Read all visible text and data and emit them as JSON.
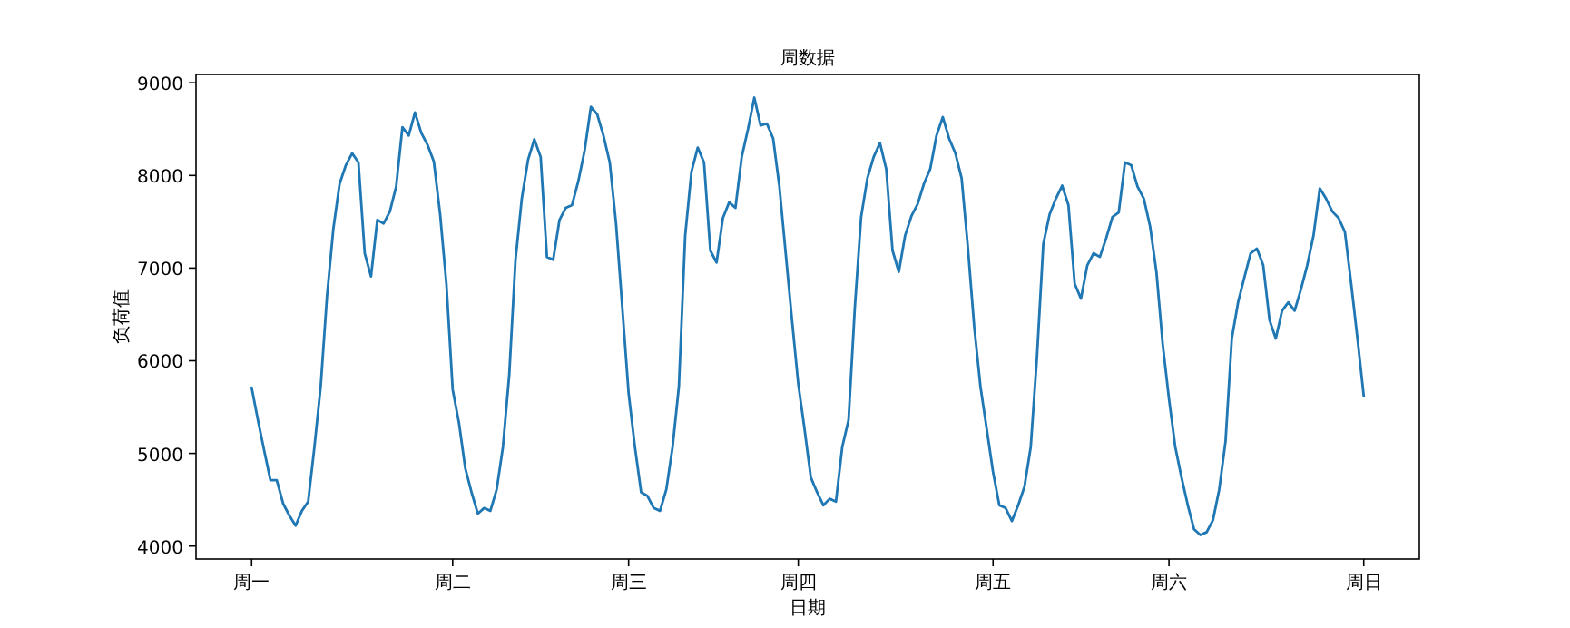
{
  "chart_data": {
    "type": "line",
    "title": "周数据",
    "xlabel": "日期",
    "ylabel": "负荷值",
    "categories": [
      "周一",
      null,
      null,
      null,
      null,
      null,
      null,
      null,
      null,
      null,
      null,
      null,
      null,
      null,
      null,
      null,
      null,
      null,
      null,
      null,
      null,
      null,
      null,
      null,
      null,
      null,
      null,
      null,
      null,
      null,
      null,
      null,
      "周二",
      null,
      null,
      null,
      null,
      null,
      null,
      null,
      null,
      null,
      null,
      null,
      null,
      null,
      null,
      null,
      null,
      null,
      null,
      null,
      null,
      null,
      null,
      null,
      null,
      null,
      null,
      null,
      "周三",
      null,
      null,
      null,
      null,
      null,
      null,
      null,
      null,
      null,
      null,
      null,
      null,
      null,
      null,
      null,
      null,
      null,
      null,
      null,
      null,
      null,
      null,
      null,
      null,
      null,
      null,
      "周四",
      null,
      null,
      null,
      null,
      null,
      null,
      null,
      null,
      null,
      null,
      null,
      null,
      null,
      null,
      null,
      null,
      null,
      null,
      null,
      null,
      null,
      null,
      null,
      null,
      null,
      null,
      null,
      null,
      null,
      null,
      "周五",
      null,
      null,
      null,
      null,
      null,
      null,
      null,
      null,
      null,
      null,
      null,
      null,
      null,
      null,
      null,
      null,
      null,
      null,
      null,
      null,
      null,
      null,
      null,
      null,
      null,
      null,
      null,
      "周六",
      null,
      null,
      null,
      null,
      null,
      null,
      null,
      null,
      null,
      null,
      null,
      null,
      null,
      null,
      null,
      null,
      null,
      null,
      null,
      null,
      null,
      null,
      null,
      null,
      null,
      null,
      null,
      null,
      null,
      null,
      "周日"
    ],
    "series": [
      {
        "color": "#1f77b4",
        "values": [
          5710,
          5360,
          5030,
          4710,
          4710,
          4460,
          4330,
          4220,
          4380,
          4480,
          5070,
          5730,
          6700,
          7420,
          7910,
          8110,
          8240,
          8140,
          7160,
          6910,
          7520,
          7480,
          7610,
          7880,
          8520,
          8430,
          8680,
          8460,
          8330,
          8150,
          7580,
          6830,
          5690,
          5330,
          4840,
          4580,
          4350,
          4410,
          4380,
          4610,
          5070,
          5850,
          7090,
          7750,
          8170,
          8390,
          8200,
          7120,
          7090,
          7520,
          7650,
          7680,
          7940,
          8270,
          8740,
          8660,
          8430,
          8140,
          7480,
          6570,
          5650,
          5070,
          4580,
          4540,
          4410,
          4380,
          4610,
          5070,
          5720,
          7350,
          8040,
          8300,
          8140,
          7190,
          7060,
          7540,
          7710,
          7650,
          8200,
          8500,
          8840,
          8540,
          8560,
          8400,
          7880,
          7160,
          6440,
          5750,
          5260,
          4740,
          4580,
          4440,
          4510,
          4480,
          5070,
          5360,
          6570,
          7550,
          7970,
          8200,
          8350,
          8070,
          7190,
          6960,
          7350,
          7560,
          7690,
          7910,
          8070,
          8430,
          8630,
          8400,
          8240,
          7970,
          7220,
          6370,
          5720,
          5260,
          4800,
          4440,
          4410,
          4270,
          4440,
          4640,
          5070,
          6050,
          7260,
          7580,
          7750,
          7890,
          7680,
          6830,
          6670,
          7030,
          7160,
          7120,
          7320,
          7550,
          7600,
          8140,
          8110,
          7880,
          7750,
          7450,
          6960,
          6180,
          5590,
          5070,
          4740,
          4440,
          4180,
          4120,
          4150,
          4280,
          4610,
          5130,
          6240,
          6630,
          6900,
          7160,
          7210,
          7030,
          6440,
          6240,
          6540,
          6630,
          6540,
          6770,
          7030,
          7350,
          7860,
          7750,
          7610,
          7540,
          7390,
          6830,
          6240,
          5620
        ]
      }
    ],
    "ylim": [
      3860,
      9090
    ],
    "yticks": [
      4000,
      5000,
      6000,
      7000,
      8000,
      9000
    ]
  }
}
